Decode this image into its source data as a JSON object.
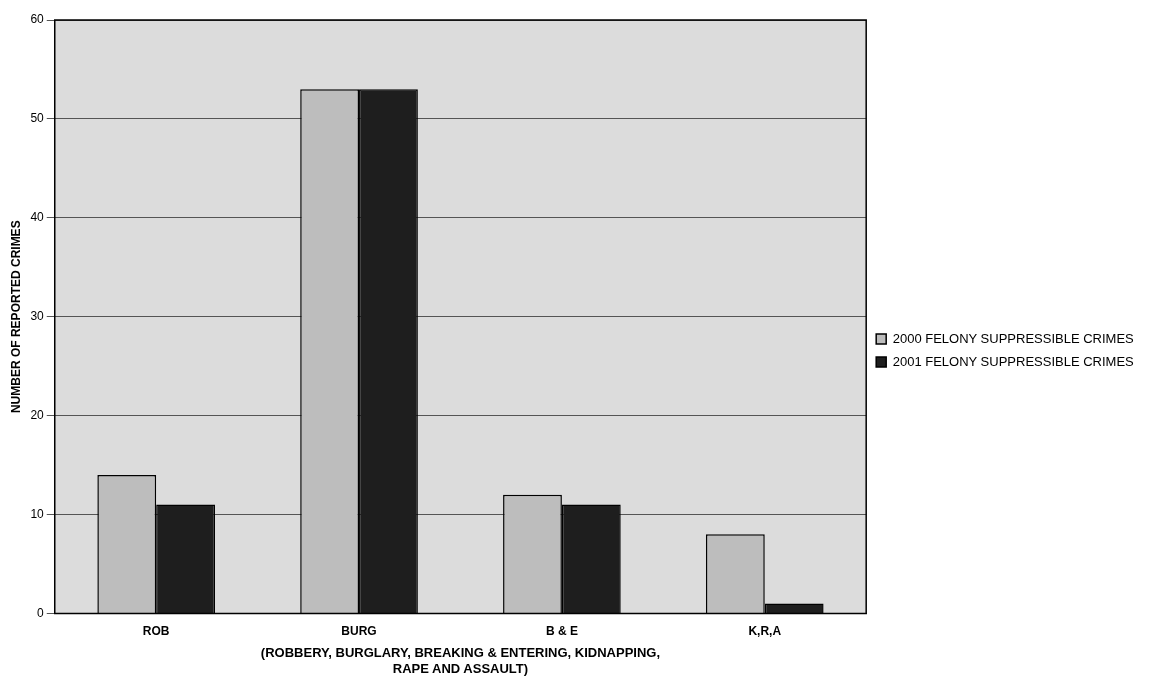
{
  "chart_data": {
    "type": "bar",
    "ylabel": "NUMBER OF REPORTED CRIMES",
    "xlabel": "(ROBBERY, BURGLARY, BREAKING & ENTERING, KIDNAPPING, RAPE AND ASSAULT)",
    "categories": [
      "ROB",
      "BURG",
      "B & E",
      "K,R,A"
    ],
    "series": [
      {
        "name": "2000 FELONY SUPPRESSIBLE CRIMES",
        "color": "#bdbdbd",
        "values": [
          14,
          53,
          12,
          8
        ]
      },
      {
        "name": "2001 FELONY SUPPRESSIBLE CRIMES",
        "color": "#1e1e1e",
        "values": [
          11,
          53,
          11,
          1
        ]
      }
    ],
    "ylim": [
      0,
      60
    ],
    "yticks": [
      0,
      10,
      20,
      30,
      40,
      50,
      60
    ],
    "grid": "y",
    "legend": "right"
  }
}
